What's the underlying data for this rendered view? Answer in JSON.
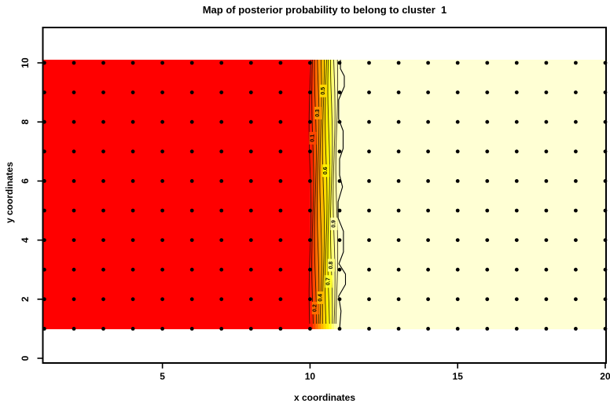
{
  "title": "Map of posterior probability to belong to cluster  1",
  "chart_data": {
    "type": "heatmap",
    "subtype": "filled-contour-probability-map",
    "title": "Map of posterior probability to belong to cluster  1",
    "xlabel": "x coordinates",
    "ylabel": "y coordinates",
    "x_ticks": [
      5,
      10,
      15,
      20
    ],
    "y_ticks": [
      0,
      2,
      4,
      6,
      8,
      10
    ],
    "xlim": [
      1,
      20
    ],
    "ylim": [
      0,
      10
    ],
    "grid_on": false,
    "legend": "none",
    "grid_points": {
      "marker": "black-dot",
      "x_start": 1,
      "x_end": 20,
      "x_step": 1,
      "y_start": 1,
      "y_end": 10,
      "y_step": 1
    },
    "colors": {
      "low_probability_fill": "#FF0000",
      "high_probability_fill": "#FFFFD4",
      "transition_strip_fill": "#FFFFBE",
      "contour_line": "#1A0D00",
      "outer_contour_line": "#000000",
      "point": "#000000"
    },
    "regions": [
      {
        "name": "left-region",
        "x_range": [
          1,
          10
        ],
        "y_range": [
          1,
          10
        ],
        "fill": "#FF0000",
        "probability": "~0 contour side (solid red)"
      },
      {
        "name": "transition-region",
        "x_range": [
          10,
          11
        ],
        "y_range": [
          1,
          10
        ],
        "band_colors": [
          "#FF1C00",
          "#FF4600",
          "#FF6D00",
          "#FF9400",
          "#FFB700",
          "#FFD800",
          "#FFF100",
          "#FFFF2B",
          "#FFFF78",
          "#FFFFA6"
        ]
      },
      {
        "name": "right-region",
        "x_range": [
          11,
          20
        ],
        "y_range": [
          1,
          10
        ],
        "fill": "#FFFFD4",
        "probability": "~1 contour side (pale yellow)"
      }
    ],
    "contour_labels": [
      {
        "level": "0.1",
        "x": 10.09,
        "y": 7.45
      },
      {
        "level": "0.2",
        "x": 10.18,
        "y": 1.7
      },
      {
        "level": "0.3",
        "x": 10.27,
        "y": 8.3
      },
      {
        "level": "0.4",
        "x": 10.36,
        "y": 2.05
      },
      {
        "level": "0.5",
        "x": 10.45,
        "y": 9.05
      },
      {
        "level": "0.6",
        "x": 10.54,
        "y": 6.35
      },
      {
        "level": "0.7",
        "x": 10.63,
        "y": 2.6
      },
      {
        "level": "0.8",
        "x": 10.72,
        "y": 3.15
      },
      {
        "level": "0.9",
        "x": 10.81,
        "y": 4.55
      }
    ],
    "outer_contour_path": [
      [
        11.03,
        10.1
      ],
      [
        11.03,
        9.8
      ],
      [
        11.16,
        9.55
      ],
      [
        11.16,
        9.2
      ],
      [
        10.97,
        8.75
      ],
      [
        10.97,
        8.1
      ],
      [
        11.12,
        7.7
      ],
      [
        11.12,
        7.1
      ],
      [
        11.0,
        6.75
      ],
      [
        11.0,
        6.2
      ],
      [
        11.1,
        5.8
      ],
      [
        10.95,
        5.3
      ],
      [
        10.95,
        4.75
      ],
      [
        11.13,
        4.3
      ],
      [
        11.13,
        3.6
      ],
      [
        10.98,
        3.2
      ],
      [
        11.2,
        2.85
      ],
      [
        11.2,
        2.5
      ],
      [
        10.97,
        2.1
      ],
      [
        11.05,
        1.6
      ],
      [
        11.0,
        1.0
      ]
    ]
  }
}
